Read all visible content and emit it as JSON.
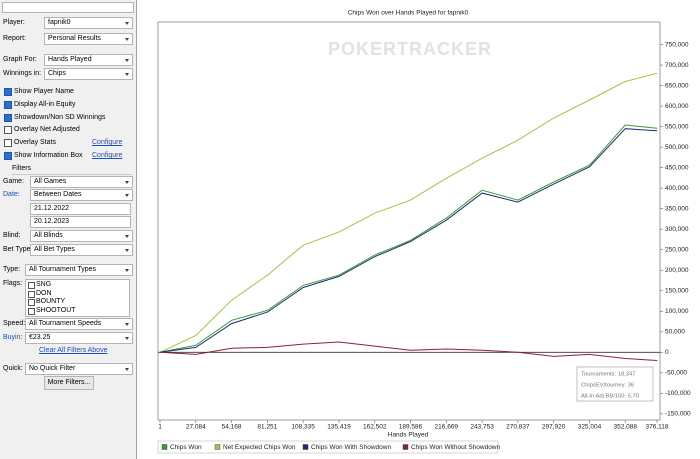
{
  "sidebar": {
    "top": [
      {
        "label": "Player:",
        "value": "fapnik0"
      },
      {
        "label": "Report:",
        "value": "Personal Results"
      },
      {
        "label": "Graph For:",
        "value": "Hands Played"
      },
      {
        "label": "Winnings in:",
        "value": "Chips"
      }
    ],
    "options": [
      {
        "label": "Show Player Name",
        "checked": true
      },
      {
        "label": "Display All-in Equity",
        "checked": true
      },
      {
        "label": "Showdown/Non SD Winnings",
        "checked": true
      },
      {
        "label": "Overlay Net Adjusted",
        "checked": false
      },
      {
        "label": "Overlay Stats",
        "checked": false,
        "link": "Configure"
      },
      {
        "label": "Show Information Box",
        "checked": true,
        "link": "Configure"
      }
    ],
    "filters_header": "Filters",
    "game": {
      "label": "Game:",
      "value": "All Games"
    },
    "date": {
      "label": "Date:",
      "value": "Between Dates"
    },
    "date_from": "21.12.2022",
    "date_to": "20.12.2023",
    "blind": {
      "label": "Blind:",
      "value": "All Blinds"
    },
    "bet_type": {
      "label": "Bet Type:",
      "value": "All Bet Types"
    },
    "type": {
      "label": "Type:",
      "value": "All Tournament Types"
    },
    "flags_label": "Flags:",
    "flags": [
      "SNG",
      "DON",
      "BOUNTY",
      "SHOOTOUT"
    ],
    "speed": {
      "label": "Speed:",
      "value": "All Tournament Speeds"
    },
    "buyin": {
      "label": "Buyin:",
      "value": "€23.25"
    },
    "clear_filters": "Clear All Filters Above",
    "quick": {
      "label": "Quick:",
      "value": "No Quick Filter"
    },
    "more_filters": "More Filters..."
  },
  "chart_data": {
    "type": "line",
    "title": "Chips Won over Hands Played for fapnik0",
    "watermark": "POKERTRACKER",
    "xlabel": "Hands Played",
    "x": [
      1,
      27084,
      54168,
      81251,
      108335,
      135419,
      162502,
      189586,
      216669,
      243753,
      270837,
      297920,
      325004,
      352088,
      376118
    ],
    "xlim": [
      1,
      376118
    ],
    "xticks": [
      1,
      {
        "value": 27084,
        "label": "27,084"
      },
      {
        "value": 54168,
        "label": "54,168"
      },
      {
        "value": 81251,
        "label": "81,251"
      },
      {
        "value": 108335,
        "label": "108,335"
      },
      {
        "value": 135419,
        "label": "135,419"
      },
      {
        "value": 162502,
        "label": "162,502"
      },
      {
        "value": 189586,
        "label": "189,586"
      },
      {
        "value": 216669,
        "label": "216,669"
      },
      {
        "value": 243753,
        "label": "243,753"
      },
      {
        "value": 270837,
        "label": "270,837"
      },
      {
        "value": 297920,
        "label": "297,920"
      },
      {
        "value": 325004,
        "label": "325,004"
      },
      {
        "value": 352088,
        "label": "352,088"
      },
      {
        "value": 376118,
        "label": "376,118"
      }
    ],
    "ylim": [
      -165000,
      805000
    ],
    "yticks": [
      {
        "value": -150000,
        "label": "-150,000"
      },
      {
        "value": -100000,
        "label": "-100,000"
      },
      {
        "value": -50000,
        "label": "-50,000"
      },
      0,
      {
        "value": 50000,
        "label": "50,000"
      },
      {
        "value": 100000,
        "label": "100,000"
      },
      {
        "value": 150000,
        "label": "150,000"
      },
      {
        "value": 200000,
        "label": "200,000"
      },
      {
        "value": 250000,
        "label": "250,000"
      },
      {
        "value": 300000,
        "label": "300,000"
      },
      {
        "value": 350000,
        "label": "350,000"
      },
      {
        "value": 400000,
        "label": "400,000"
      },
      {
        "value": 450000,
        "label": "450,000"
      },
      {
        "value": 500000,
        "label": "500,000"
      },
      {
        "value": 550000,
        "label": "550,000"
      },
      {
        "value": 600000,
        "label": "600,000"
      },
      {
        "value": 650000,
        "label": "650,000"
      },
      {
        "value": 700000,
        "label": "700,000"
      },
      {
        "value": 750000,
        "label": "750,000"
      }
    ],
    "series": [
      {
        "name": "Chips Won",
        "color": "#3c9a3c",
        "values": [
          0,
          17000,
          78000,
          102000,
          163000,
          188000,
          237000,
          273000,
          327000,
          395000,
          371000,
          415000,
          456000,
          554000,
          546000
        ]
      },
      {
        "name": "Net Expected Chips Won",
        "color": "#a9c044",
        "values": [
          0,
          41000,
          127000,
          188000,
          261000,
          293000,
          339000,
          371000,
          424000,
          473000,
          517000,
          571000,
          615000,
          660000,
          680000
        ]
      },
      {
        "name": "Chips Won With Showdown",
        "color": "#1e2a78",
        "values": [
          0,
          12000,
          70000,
          98000,
          158000,
          185000,
          233000,
          270000,
          322000,
          388000,
          366000,
          410000,
          452000,
          545000,
          540000
        ]
      },
      {
        "name": "Chips Won Without Showdown",
        "color": "#8b2232",
        "values": [
          0,
          -5000,
          10000,
          12000,
          20000,
          25000,
          15000,
          5000,
          8000,
          5000,
          0,
          -10000,
          -5000,
          -15000,
          -20000
        ]
      }
    ],
    "info_box": [
      "Tournaments: 18,347",
      "ChipsEV/tourney: 36",
      "All-In Adj BB/100: 5.70"
    ]
  }
}
